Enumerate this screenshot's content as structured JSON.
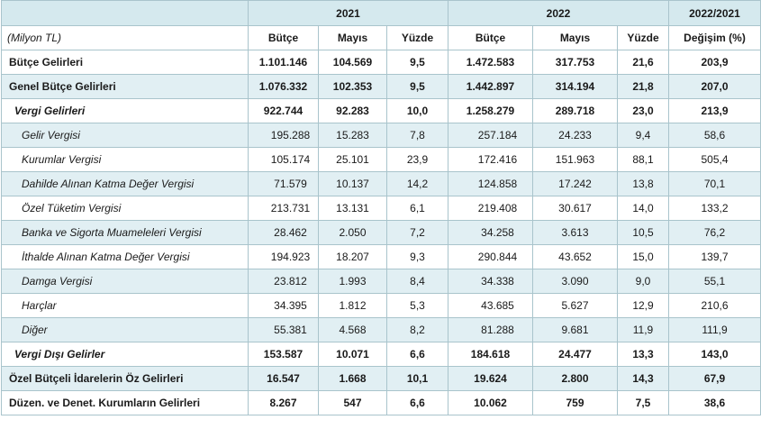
{
  "years": {
    "y2021": "2021",
    "y2022": "2022",
    "change": "2022/2021"
  },
  "columns": {
    "unit": "(Milyon TL)",
    "budget_2021": "Bütçe",
    "may_2021": "Mayıs",
    "pct_2021": "Yüzde",
    "budget_2022": "Bütçe",
    "may_2022": "Mayıs",
    "pct_2022": "Yüzde",
    "change": "Değişim (%)"
  },
  "rows": [
    {
      "label": "Bütçe Gelirleri",
      "level": 0,
      "values": [
        "1.101.146",
        "104.569",
        "9,5",
        "1.472.583",
        "317.753",
        "21,6",
        "203,9"
      ]
    },
    {
      "label": "Genel Bütçe Gelirleri",
      "level": 0,
      "values": [
        "1.076.332",
        "102.353",
        "9,5",
        "1.442.897",
        "314.194",
        "21,8",
        "207,0"
      ]
    },
    {
      "label": "Vergi Gelirleri",
      "level": 1,
      "values": [
        "922.744",
        "92.283",
        "10,0",
        "1.258.279",
        "289.718",
        "23,0",
        "213,9"
      ]
    },
    {
      "label": "Gelir Vergisi",
      "level": 2,
      "values": [
        "195.288",
        "15.283",
        "7,8",
        "257.184",
        "24.233",
        "9,4",
        "58,6"
      ]
    },
    {
      "label": "Kurumlar Vergisi",
      "level": 2,
      "values": [
        "105.174",
        "25.101",
        "23,9",
        "172.416",
        "151.963",
        "88,1",
        "505,4"
      ]
    },
    {
      "label": "Dahilde Alınan Katma Değer Vergisi",
      "level": 2,
      "values": [
        "71.579",
        "10.137",
        "14,2",
        "124.858",
        "17.242",
        "13,8",
        "70,1"
      ]
    },
    {
      "label": "Özel Tüketim Vergisi",
      "level": 2,
      "values": [
        "213.731",
        "13.131",
        "6,1",
        "219.408",
        "30.617",
        "14,0",
        "133,2"
      ]
    },
    {
      "label": "Banka ve Sigorta Muameleleri Vergisi",
      "level": 2,
      "values": [
        "28.462",
        "2.050",
        "7,2",
        "34.258",
        "3.613",
        "10,5",
        "76,2"
      ]
    },
    {
      "label": "İthalde Alınan Katma Değer Vergisi",
      "level": 2,
      "values": [
        "194.923",
        "18.207",
        "9,3",
        "290.844",
        "43.652",
        "15,0",
        "139,7"
      ]
    },
    {
      "label": "Damga Vergisi",
      "level": 2,
      "values": [
        "23.812",
        "1.993",
        "8,4",
        "34.338",
        "3.090",
        "9,0",
        "55,1"
      ]
    },
    {
      "label": "Harçlar",
      "level": 2,
      "values": [
        "34.395",
        "1.812",
        "5,3",
        "43.685",
        "5.627",
        "12,9",
        "210,6"
      ]
    },
    {
      "label": "Diğer",
      "level": 2,
      "values": [
        "55.381",
        "4.568",
        "8,2",
        "81.288",
        "9.681",
        "11,9",
        "111,9"
      ]
    },
    {
      "label": "Vergi Dışı Gelirler",
      "level": 1,
      "values": [
        "153.587",
        "10.071",
        "6,6",
        "184.618",
        "24.477",
        "13,3",
        "143,0"
      ]
    },
    {
      "label": "Özel Bütçeli İdarelerin Öz Gelirleri",
      "level": 0,
      "values": [
        "16.547",
        "1.668",
        "10,1",
        "19.624",
        "2.800",
        "14,3",
        "67,9"
      ]
    },
    {
      "label": "Düzen. ve Denet. Kurumların Gelirleri",
      "level": 0,
      "values": [
        "8.267",
        "547",
        "6,6",
        "10.062",
        "759",
        "7,5",
        "38,6"
      ]
    }
  ],
  "colors": {
    "header_bg": "#d5e9ee",
    "stripe_bg": "#e1eff3",
    "border": "#a9c4cc"
  }
}
